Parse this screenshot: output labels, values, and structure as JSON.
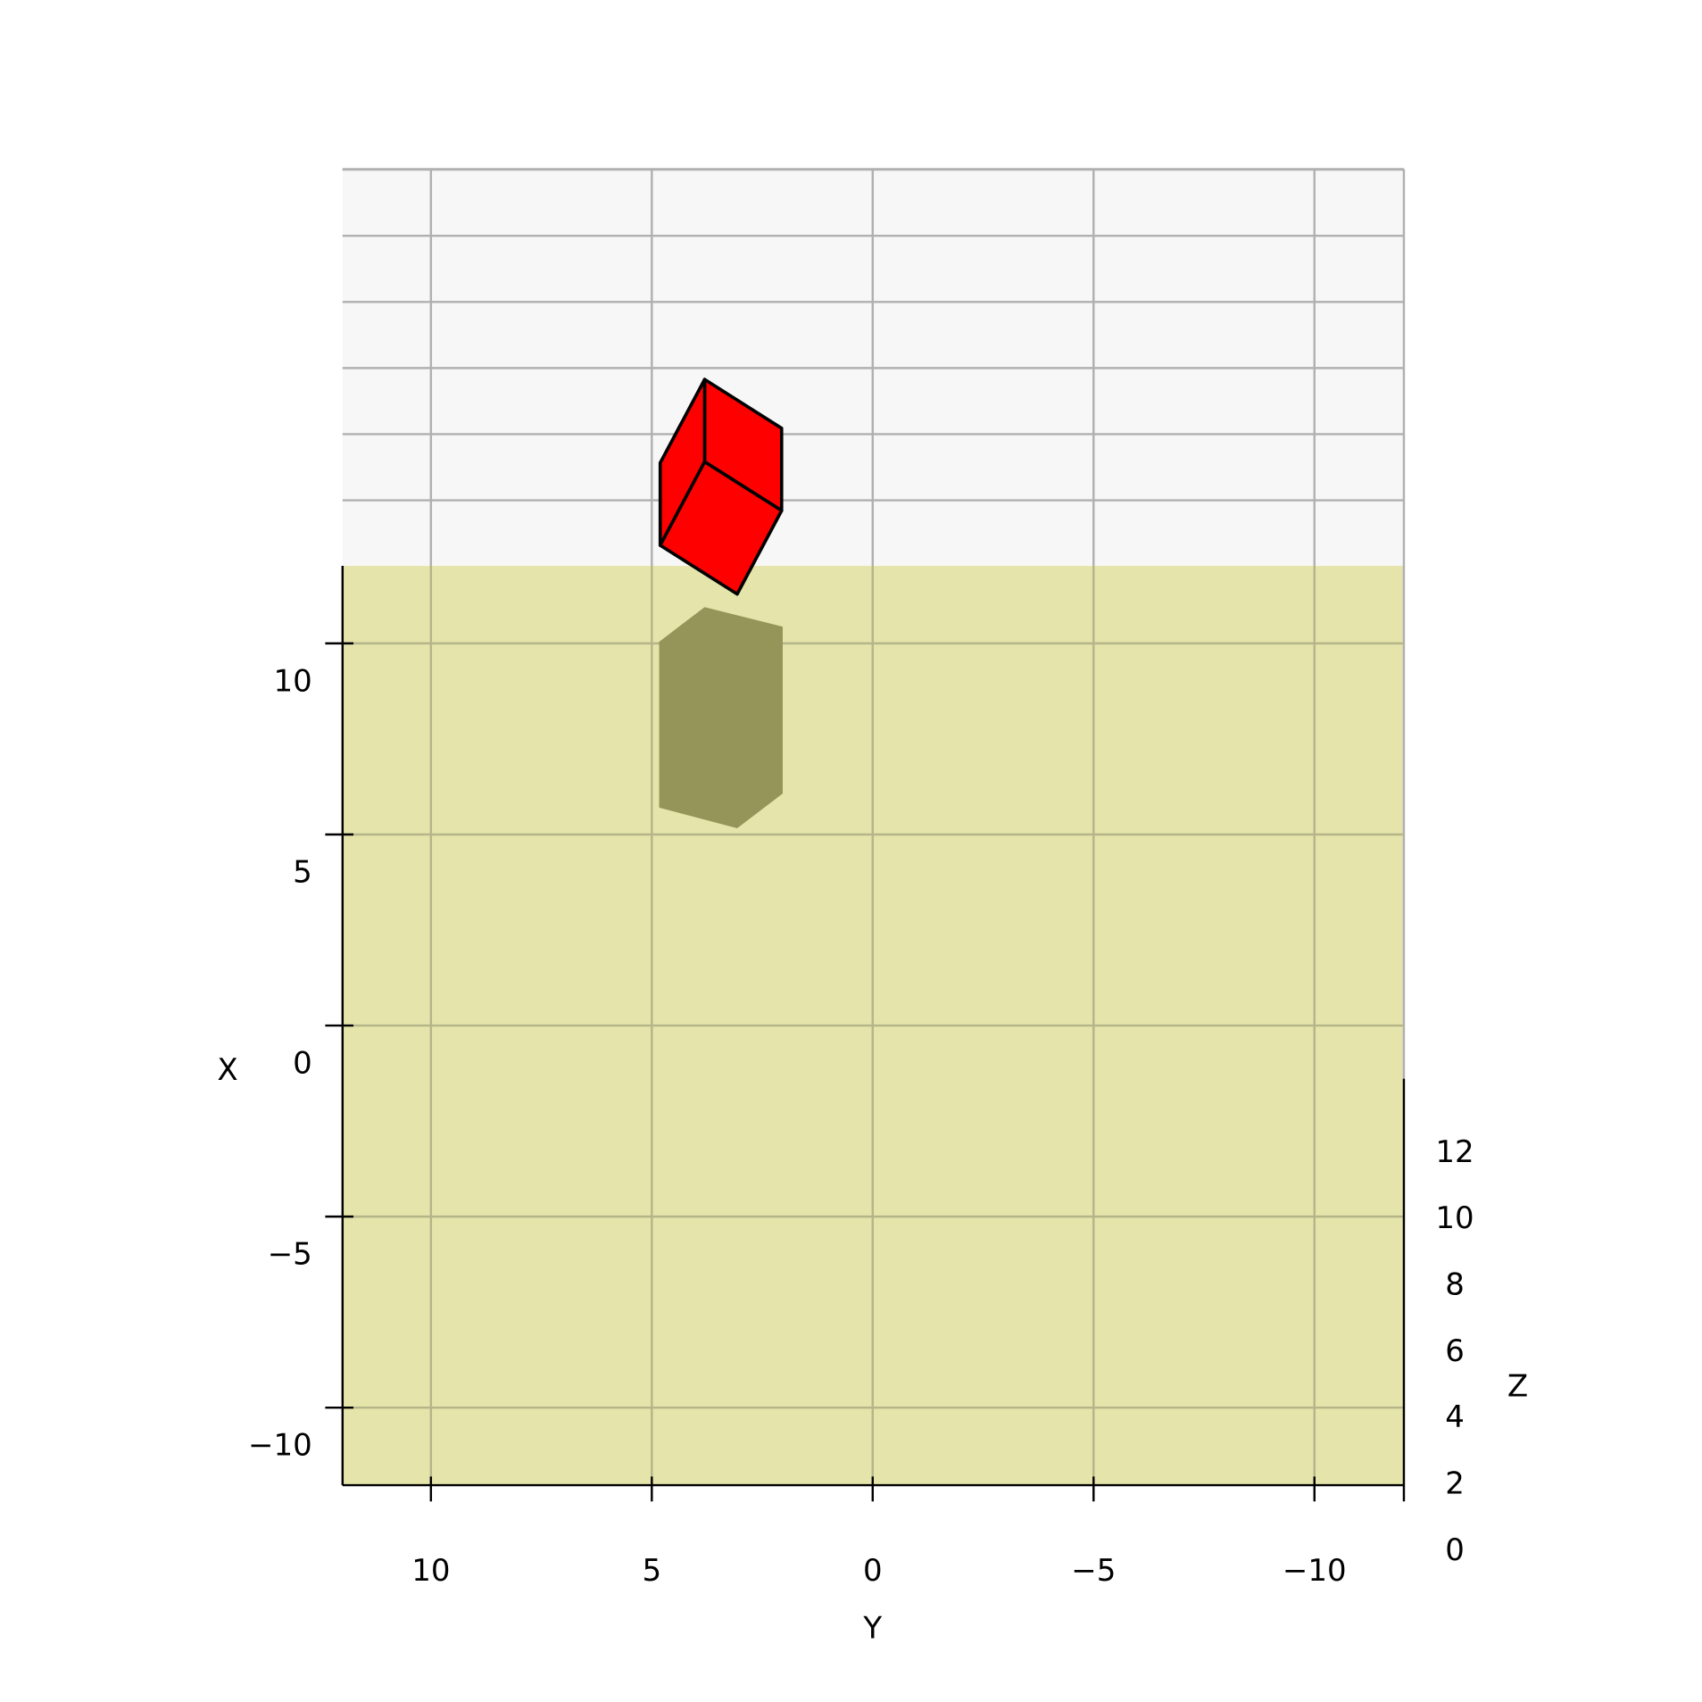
{
  "chart_data": {
    "type": "3d-voxel",
    "title": "",
    "xlabel": "X",
    "ylabel": "Y",
    "zlabel": "Z",
    "x_ticks": [
      10,
      5,
      0,
      -5,
      -10
    ],
    "x_tick_labels": [
      "10",
      "5",
      "0",
      "−5",
      "−10"
    ],
    "y_ticks": [
      10,
      5,
      0,
      -5,
      -10
    ],
    "y_tick_labels": [
      "10",
      "5",
      "0",
      "−5",
      "−10"
    ],
    "z_ticks": [
      12,
      10,
      8,
      6,
      4,
      2,
      0
    ],
    "z_tick_labels": [
      "12",
      "10",
      "8",
      "6",
      "4",
      "2",
      "0"
    ],
    "xlim": [
      -12,
      12
    ],
    "ylim": [
      -12,
      12
    ],
    "grid": true,
    "objects": [
      {
        "type": "cube",
        "color": "#ff0000",
        "edge_color": "#000000",
        "approx_x": [
          5.2,
          10.9
        ],
        "approx_y": [
          2.0,
          4.8
        ]
      }
    ],
    "shadow_color": "#95955a",
    "floor_color": "#e5e4ab",
    "wall_color": "#f7f7f7",
    "grid_color": "#b0b0b0"
  }
}
